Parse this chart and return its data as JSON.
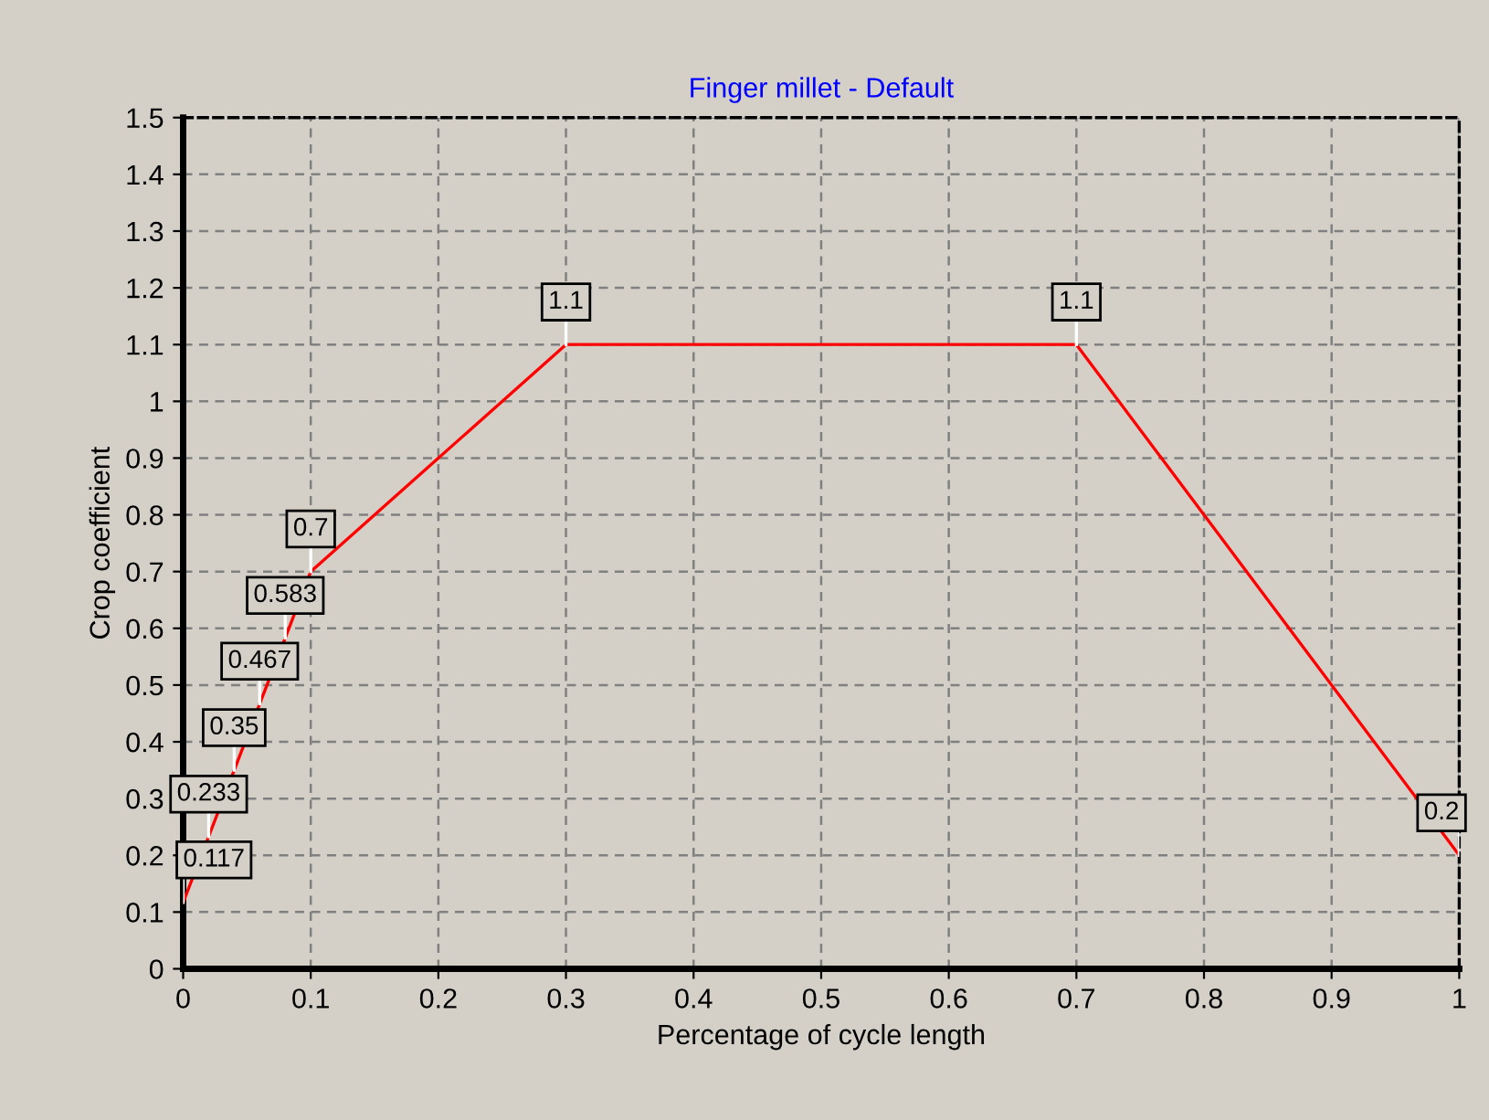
{
  "chart_data": {
    "type": "line",
    "title": "Finger millet - Default",
    "xlabel": "Percentage of cycle length",
    "ylabel": "Crop coefficient",
    "x": [
      0,
      0.02,
      0.04,
      0.06,
      0.08,
      0.1,
      0.3,
      0.7,
      1
    ],
    "series": [
      {
        "color": "#ff0000",
        "values": [
          0.117,
          0.233,
          0.35,
          0.467,
          0.583,
          0.7,
          1.1,
          1.1,
          0.2
        ]
      }
    ],
    "data_labels": true,
    "xlim": [
      0,
      1
    ],
    "ylim": [
      0,
      1.5
    ],
    "xticks": [
      0,
      0.1,
      0.2,
      0.3,
      0.4,
      0.5,
      0.6,
      0.7,
      0.8,
      0.9,
      1
    ],
    "yticks": [
      0,
      0.1,
      0.2,
      0.3,
      0.4,
      0.5,
      0.6,
      0.7,
      0.8,
      0.9,
      1,
      1.1,
      1.2,
      1.3,
      1.4,
      1.5
    ],
    "grid": true,
    "line_style": "solid",
    "marker": "none"
  }
}
